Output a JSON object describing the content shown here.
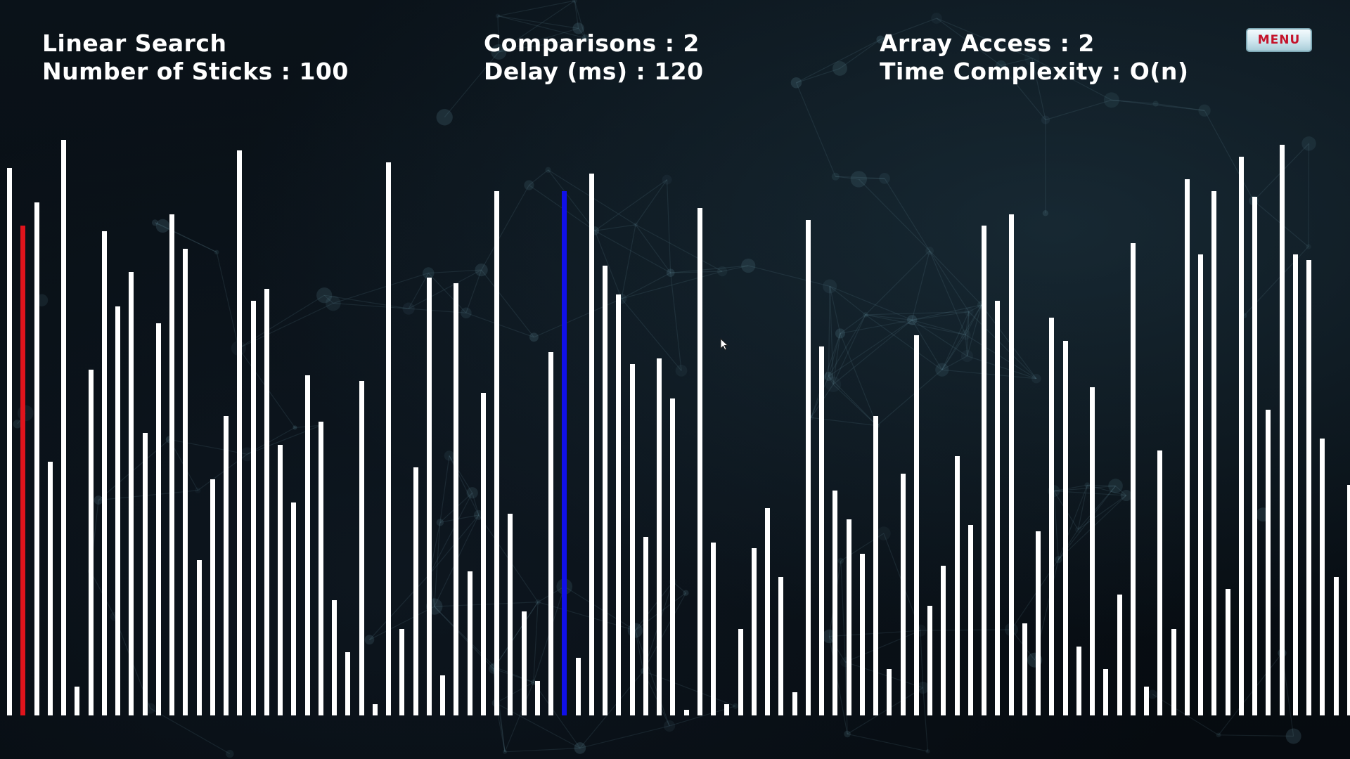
{
  "title": "Linear Search",
  "stats": {
    "sticks_label": "Number of Sticks : 100",
    "comparisons_label": "Comparisons : 2",
    "delay_label": "Delay (ms) : 120",
    "array_access_label": "Array Access : 2",
    "complexity_label": "Time Complexity : O(n)"
  },
  "menu": {
    "label": "MENU"
  },
  "colors": {
    "stick": "#ffffff",
    "current": "#e0141c",
    "target": "#1010e8",
    "background": "#060b10"
  },
  "sticks": {
    "count": 100,
    "current_index": 1,
    "target_index": 41,
    "heights": [
      0.95,
      0.85,
      0.89,
      0.44,
      0.999,
      0.05,
      0.6,
      0.84,
      0.71,
      0.77,
      0.49,
      0.68,
      0.87,
      0.81,
      0.27,
      0.41,
      0.52,
      0.98,
      0.72,
      0.74,
      0.47,
      0.37,
      0.59,
      0.51,
      0.2,
      0.11,
      0.58,
      0.02,
      0.96,
      0.15,
      0.43,
      0.76,
      0.07,
      0.75,
      0.25,
      0.56,
      0.91,
      0.35,
      0.18,
      0.06,
      0.63,
      0.91,
      0.1,
      0.94,
      0.78,
      0.73,
      0.61,
      0.31,
      0.62,
      0.55,
      0.01,
      0.88,
      0.3,
      0.02,
      0.15,
      0.29,
      0.36,
      0.24,
      0.04,
      0.86,
      0.64,
      0.39,
      0.34,
      0.28,
      0.52,
      0.08,
      0.42,
      0.66,
      0.19,
      0.26,
      0.45,
      0.33,
      0.85,
      0.72,
      0.87,
      0.16,
      0.32,
      0.69,
      0.65,
      0.12,
      0.57,
      0.08,
      0.21,
      0.82,
      0.05,
      0.46,
      0.15,
      0.93,
      0.8,
      0.91,
      0.22,
      0.97,
      0.9,
      0.53,
      0.99,
      0.8,
      0.79,
      0.48,
      0.24,
      0.4
    ]
  }
}
